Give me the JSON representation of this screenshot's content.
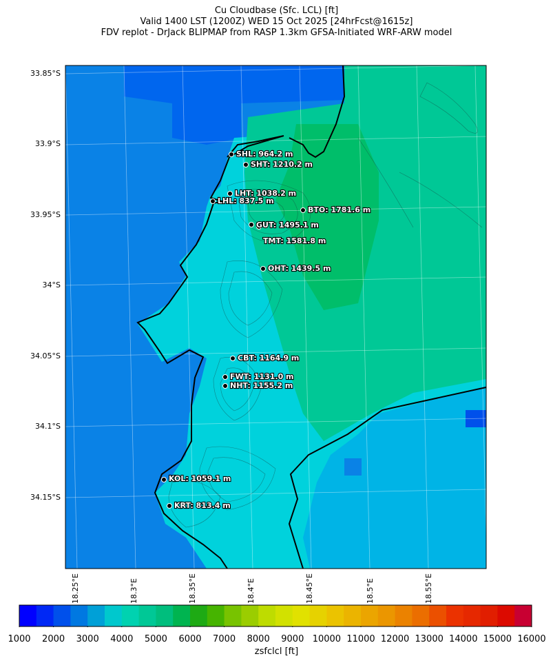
{
  "title": {
    "line1": "Cu Cloudbase (Sfc. LCL) [ft]",
    "line2": "Valid 1400 LST (1200Z) WED 15 Oct 2025 [24hrFcst@1615z]",
    "line3": "FDV replot - DrJack BLIPMAP from RASP 1.3km GFSA-Initiated WRF-ARW model"
  },
  "map": {
    "lat_labels": [
      "33.85°S",
      "33.9°S",
      "33.95°S",
      "34°S",
      "34.05°S",
      "34.1°S",
      "34.15°S"
    ],
    "lon_labels": [
      "18.25°E",
      "18.3°E",
      "18.35°E",
      "18.4°E",
      "18.45°E",
      "18.5°E",
      "18.55°E"
    ],
    "sites": [
      {
        "code": "SHL",
        "label": "SHL: 964.2 m"
      },
      {
        "code": "SHT",
        "label": "SHT: 1210.2 m"
      },
      {
        "code": "LHT",
        "label": "LHT: 1038.2 m"
      },
      {
        "code": "LHL",
        "label": "LHL: 837.5 m"
      },
      {
        "code": "BTO",
        "label": "BTO: 1781.6 m"
      },
      {
        "code": "GUT",
        "label": "GUT: 1495.1 m"
      },
      {
        "code": "TMT",
        "label": "TMT: 1581.8 m"
      },
      {
        "code": "OHT",
        "label": "OHT: 1439.5 m"
      },
      {
        "code": "CBT",
        "label": "CBT: 1164.9 m"
      },
      {
        "code": "FWT",
        "label": "FWT: 1131.0 m"
      },
      {
        "code": "NHT",
        "label": "NHT: 1155.2 m"
      },
      {
        "code": "KOL",
        "label": "KOL: 1059.1 m"
      },
      {
        "code": "KRT",
        "label": "KRT: 813.4 m"
      }
    ]
  },
  "colorbar": {
    "title": "zsfclcl [ft]",
    "labels": [
      "1000",
      "2000",
      "3000",
      "4000",
      "5000",
      "6000",
      "7000",
      "8000",
      "9000",
      "10000",
      "11000",
      "12000",
      "13000",
      "14000",
      "15000",
      "16000"
    ],
    "colors": [
      "#0000ff",
      "#0028f5",
      "#0050eb",
      "#0078e1",
      "#00a0d7",
      "#00c8cd",
      "#00d2b0",
      "#00c896",
      "#00be7d",
      "#00b450",
      "#1eaa14",
      "#46b400",
      "#78c300",
      "#9bcd00",
      "#bedc00",
      "#d2e100",
      "#e1e100",
      "#e6d200",
      "#ebc300",
      "#ebb400",
      "#eba500",
      "#eb9600",
      "#eb8200",
      "#eb6e00",
      "#eb5000",
      "#eb3200",
      "#e62800",
      "#e11e00",
      "#dc0a00",
      "#c80032"
    ]
  }
}
